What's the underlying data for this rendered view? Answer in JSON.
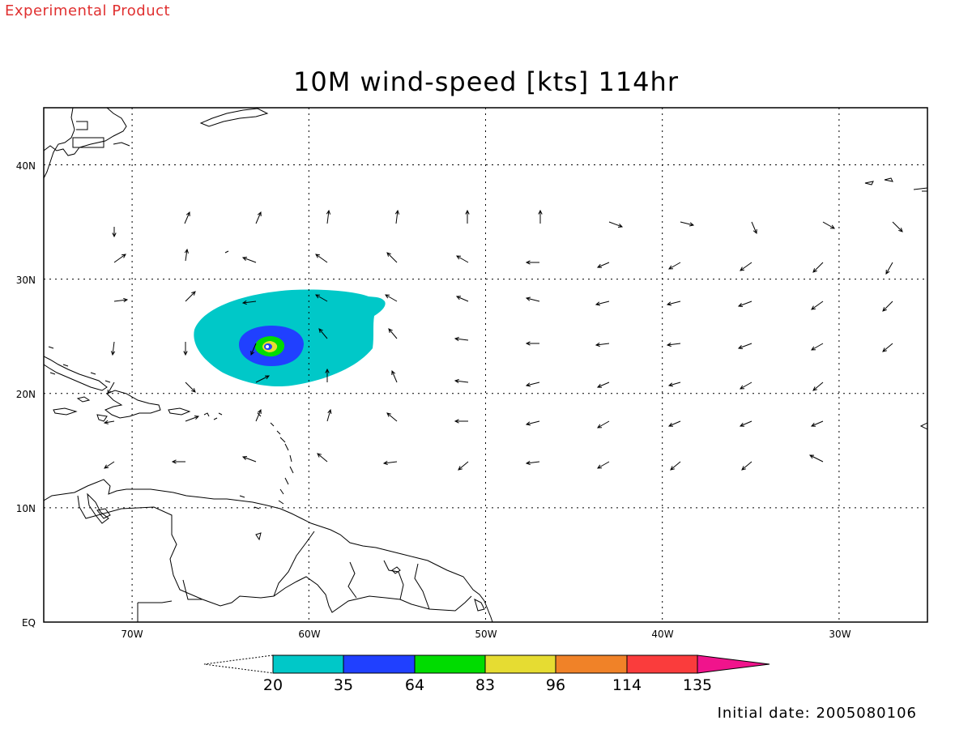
{
  "watermark": "Experimental Product",
  "title": "10M wind-speed [kts] 114hr",
  "initial_date_label": "Initial date: 2005080106",
  "map": {
    "lon_range": [
      -75,
      -25
    ],
    "lat_range": [
      0,
      45
    ],
    "grid": "dotted",
    "lon_ticks": [
      {
        "value": -70,
        "label": "70W"
      },
      {
        "value": -60,
        "label": "60W"
      },
      {
        "value": -50,
        "label": "50W"
      },
      {
        "value": -40,
        "label": "40W"
      },
      {
        "value": -30,
        "label": "30W"
      }
    ],
    "lat_ticks": [
      {
        "value": 0,
        "label": "EQ"
      },
      {
        "value": 10,
        "label": "10N"
      },
      {
        "value": 20,
        "label": "20N"
      },
      {
        "value": 30,
        "label": "30N"
      },
      {
        "value": 40,
        "label": "40N"
      }
    ],
    "storm_center": {
      "lon": -62.3,
      "lat": 24.1
    }
  },
  "colorbar": {
    "levels": [
      "20",
      "35",
      "64",
      "83",
      "96",
      "114",
      "135"
    ],
    "colors": [
      "#00c8c8",
      "#2040ff",
      "#00dc00",
      "#e6dc32",
      "#f08228",
      "#fa3c3c",
      "#f0148c"
    ]
  }
}
